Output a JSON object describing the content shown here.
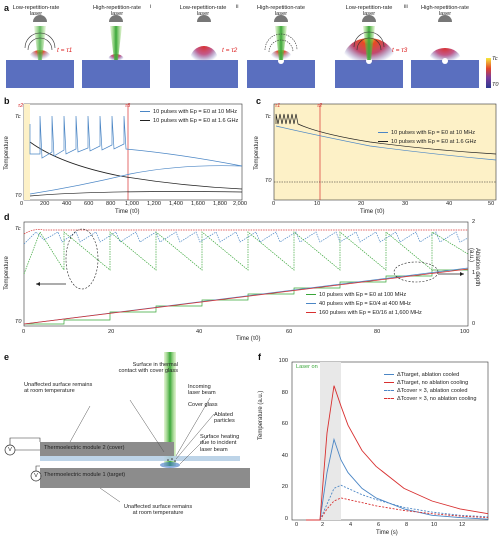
{
  "panel_a": {
    "label": "a",
    "groups": [
      {
        "roman": "i",
        "low": "Low-repetition-rate\nlaser",
        "high": "High-repetition-rate\nlaser",
        "time": "t = τ1"
      },
      {
        "roman": "ii",
        "low": "Low-repetition-rate\nlaser",
        "high": "High-repetition-rate\nlaser",
        "time": "t = τ2"
      },
      {
        "roman": "iii",
        "low": "Low-repetition-rate\nlaser",
        "high": "High-repetition-rate\nlaser",
        "time": "t = τ3"
      }
    ],
    "colorbar": {
      "top": "Tc",
      "bottom": "T0"
    }
  },
  "panel_b": {
    "label": "b",
    "chart_data": {
      "type": "line",
      "xlabel": "Time (τ0)",
      "ylabel": "Temperature",
      "xticks": [
        "0",
        "200",
        "400",
        "600",
        "800",
        "1,000",
        "1,200",
        "1,400",
        "1,600",
        "1,800",
        "2,000"
      ],
      "xlim": [
        0,
        2000
      ],
      "yticks": [
        "Tc",
        "T0"
      ],
      "markers": [
        "τ2",
        "τ3"
      ],
      "series": [
        {
          "name": "10 pulses with Ep = E0 at 10 MHz",
          "color": "#4b86c5"
        },
        {
          "name": "10 pulses with Ep = E0 at 1.6 GHz",
          "color": "#222222"
        }
      ]
    }
  },
  "panel_c": {
    "label": "c",
    "chart_data": {
      "type": "line",
      "xlabel": "Time (τ0)",
      "ylabel": "Temperature",
      "xticks": [
        "0",
        "10",
        "20",
        "30",
        "40",
        "50"
      ],
      "xlim": [
        0,
        50
      ],
      "yticks": [
        "Tc",
        "T0"
      ],
      "markers": [
        "τ1",
        "τ2"
      ],
      "series": [
        {
          "name": "10 pulses with Ep = E0 at 10 MHz",
          "color": "#4b86c5"
        },
        {
          "name": "10 pulses with Ep = E0 at 1.6 GHz",
          "color": "#222222"
        }
      ]
    }
  },
  "panel_d": {
    "label": "d",
    "chart_data": {
      "type": "line",
      "xlabel": "Time (τ0)",
      "ylabel": "Temperature",
      "y2label": "Ablation depth (a.u.)",
      "xticks": [
        "0",
        "20",
        "40",
        "60",
        "80",
        "100"
      ],
      "xlim": [
        0,
        100
      ],
      "yticks": [
        "Tc",
        "T0"
      ],
      "y2ticks": [
        "0",
        "1",
        "2"
      ],
      "series": [
        {
          "name": "10 pulses with Ep = E0 at 100 MHz",
          "color": "#3aa63a"
        },
        {
          "name": "40 pulses with Ep = E0/4 at 400 MHz",
          "color": "#4b86c5"
        },
        {
          "name": "160 pulses with Ep = E0/16 at 1,600 MHz",
          "color": "#d83030"
        }
      ]
    }
  },
  "panel_e": {
    "label": "e",
    "labels": {
      "contact": "Surface in thermal\ncontact with cover glass",
      "unaffected_top": "Unaffected surface remains\nat room temperature",
      "incoming": "Incoming\nlaser beam",
      "cover_glass": "Cover glass",
      "ablated": "Ablated\nparticles",
      "module2": "Thermoelectric module 2 (cover)",
      "heating": "Surface heating\ndue to incident\nlaser beam",
      "module1": "Thermoelectric module 1 (target)",
      "unaffected_bottom": "Unaffected surface remains\nat room temperature",
      "volt": "V"
    }
  },
  "panel_f": {
    "label": "f",
    "chart_data": {
      "type": "line",
      "xlabel": "Time (s)",
      "ylabel": "Temperature (a.u.)",
      "xticks": [
        "0",
        "2",
        "4",
        "6",
        "8",
        "10",
        "12"
      ],
      "yticks": [
        "0",
        "20",
        "40",
        "60",
        "80",
        "100"
      ],
      "xlim": [
        -2,
        12
      ],
      "ylim": [
        0,
        100
      ],
      "annotation": "Laser on",
      "series": [
        {
          "name": "ΔTtarget, ablation cooled",
          "color": "#4b86c5",
          "style": "solid",
          "x": [
            -1,
            0,
            0.5,
            1,
            1.5,
            2,
            3,
            4,
            6,
            8,
            10,
            12
          ],
          "y": [
            0,
            0,
            30,
            51,
            38,
            30,
            20,
            14,
            7,
            3,
            1.5,
            0.5
          ]
        },
        {
          "name": "ΔTtarget, no ablation cooling",
          "color": "#d83030",
          "style": "solid",
          "x": [
            -1,
            0,
            0.5,
            1,
            1.5,
            2,
            3,
            4,
            6,
            8,
            10,
            12
          ],
          "y": [
            0,
            0,
            55,
            85,
            72,
            60,
            44,
            34,
            20,
            12,
            7,
            4
          ]
        },
        {
          "name": "ΔTcover × 3, ablation cooled",
          "color": "#4b86c5",
          "style": "dashed",
          "x": [
            -1,
            0,
            0.5,
            1,
            1.5,
            2,
            3,
            4,
            6,
            8,
            10,
            12
          ],
          "y": [
            0,
            0,
            10,
            20,
            22,
            20,
            16,
            13,
            8,
            5,
            3,
            2
          ]
        },
        {
          "name": "ΔTcover × 3, no ablation cooling",
          "color": "#d83030",
          "style": "dashed",
          "x": [
            -1,
            0,
            0.5,
            1,
            1.5,
            2,
            3,
            4,
            6,
            8,
            10,
            12
          ],
          "y": [
            0,
            0,
            7,
            12,
            14,
            13,
            11,
            9,
            6,
            4,
            2.5,
            1.5
          ]
        }
      ]
    }
  }
}
